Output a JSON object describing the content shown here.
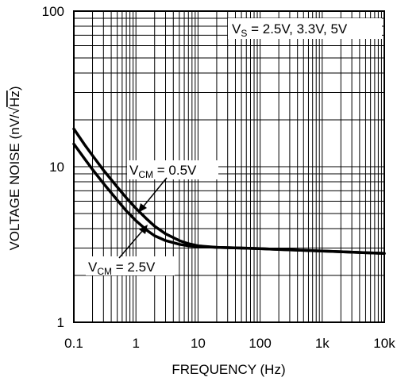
{
  "chart_data": {
    "type": "line",
    "title": "",
    "xlabel": "FREQUENCY (Hz)",
    "ylabel_main": "VOLTAGE NOISE (nV/",
    "ylabel_root": "Hz",
    "ylabel_close": ")",
    "x_scale": "log",
    "y_scale": "log",
    "xlim": [
      0.1,
      10000
    ],
    "ylim": [
      1,
      100
    ],
    "grid": true,
    "x_ticks": [
      {
        "value": 0.1,
        "label": "0.1"
      },
      {
        "value": 1,
        "label": "1"
      },
      {
        "value": 10,
        "label": "10"
      },
      {
        "value": 100,
        "label": "100"
      },
      {
        "value": 1000,
        "label": "1k"
      },
      {
        "value": 10000,
        "label": "10k"
      }
    ],
    "y_ticks": [
      {
        "value": 1,
        "label": "1"
      },
      {
        "value": 10,
        "label": "10"
      },
      {
        "value": 100,
        "label": "100"
      }
    ],
    "legend_box": {
      "prefix": "V",
      "sub": "S",
      "suffix": " = 2.5V, 3.3V, 5V",
      "placement": "top-right"
    },
    "series": [
      {
        "label_prefix": "V",
        "label_sub": "CM",
        "label_suffix": " = 0.5V",
        "x": [
          0.1,
          0.15,
          0.2,
          0.3,
          0.5,
          0.7,
          1,
          1.5,
          2,
          3,
          5,
          7,
          10,
          20,
          50,
          100,
          200,
          500,
          1000,
          2000,
          5000,
          10000
        ],
        "y": [
          17.5,
          13.8,
          11.8,
          9.5,
          7.4,
          6.3,
          5.4,
          4.6,
          4.15,
          3.7,
          3.35,
          3.2,
          3.1,
          3.03,
          3.0,
          2.97,
          2.94,
          2.9,
          2.87,
          2.84,
          2.8,
          2.77
        ]
      },
      {
        "label_prefix": "V",
        "label_sub": "CM",
        "label_suffix": " = 2.5V",
        "x": [
          0.1,
          0.15,
          0.2,
          0.3,
          0.5,
          0.7,
          1,
          1.5,
          2,
          3,
          5,
          7,
          10,
          20,
          50,
          100,
          200,
          500,
          1000,
          2000,
          5000,
          10000
        ],
        "y": [
          14.0,
          11.2,
          9.6,
          7.8,
          6.1,
          5.2,
          4.5,
          3.9,
          3.6,
          3.35,
          3.17,
          3.1,
          3.07,
          3.03,
          3.0,
          2.97,
          2.94,
          2.9,
          2.87,
          2.84,
          2.8,
          2.77
        ]
      }
    ]
  }
}
